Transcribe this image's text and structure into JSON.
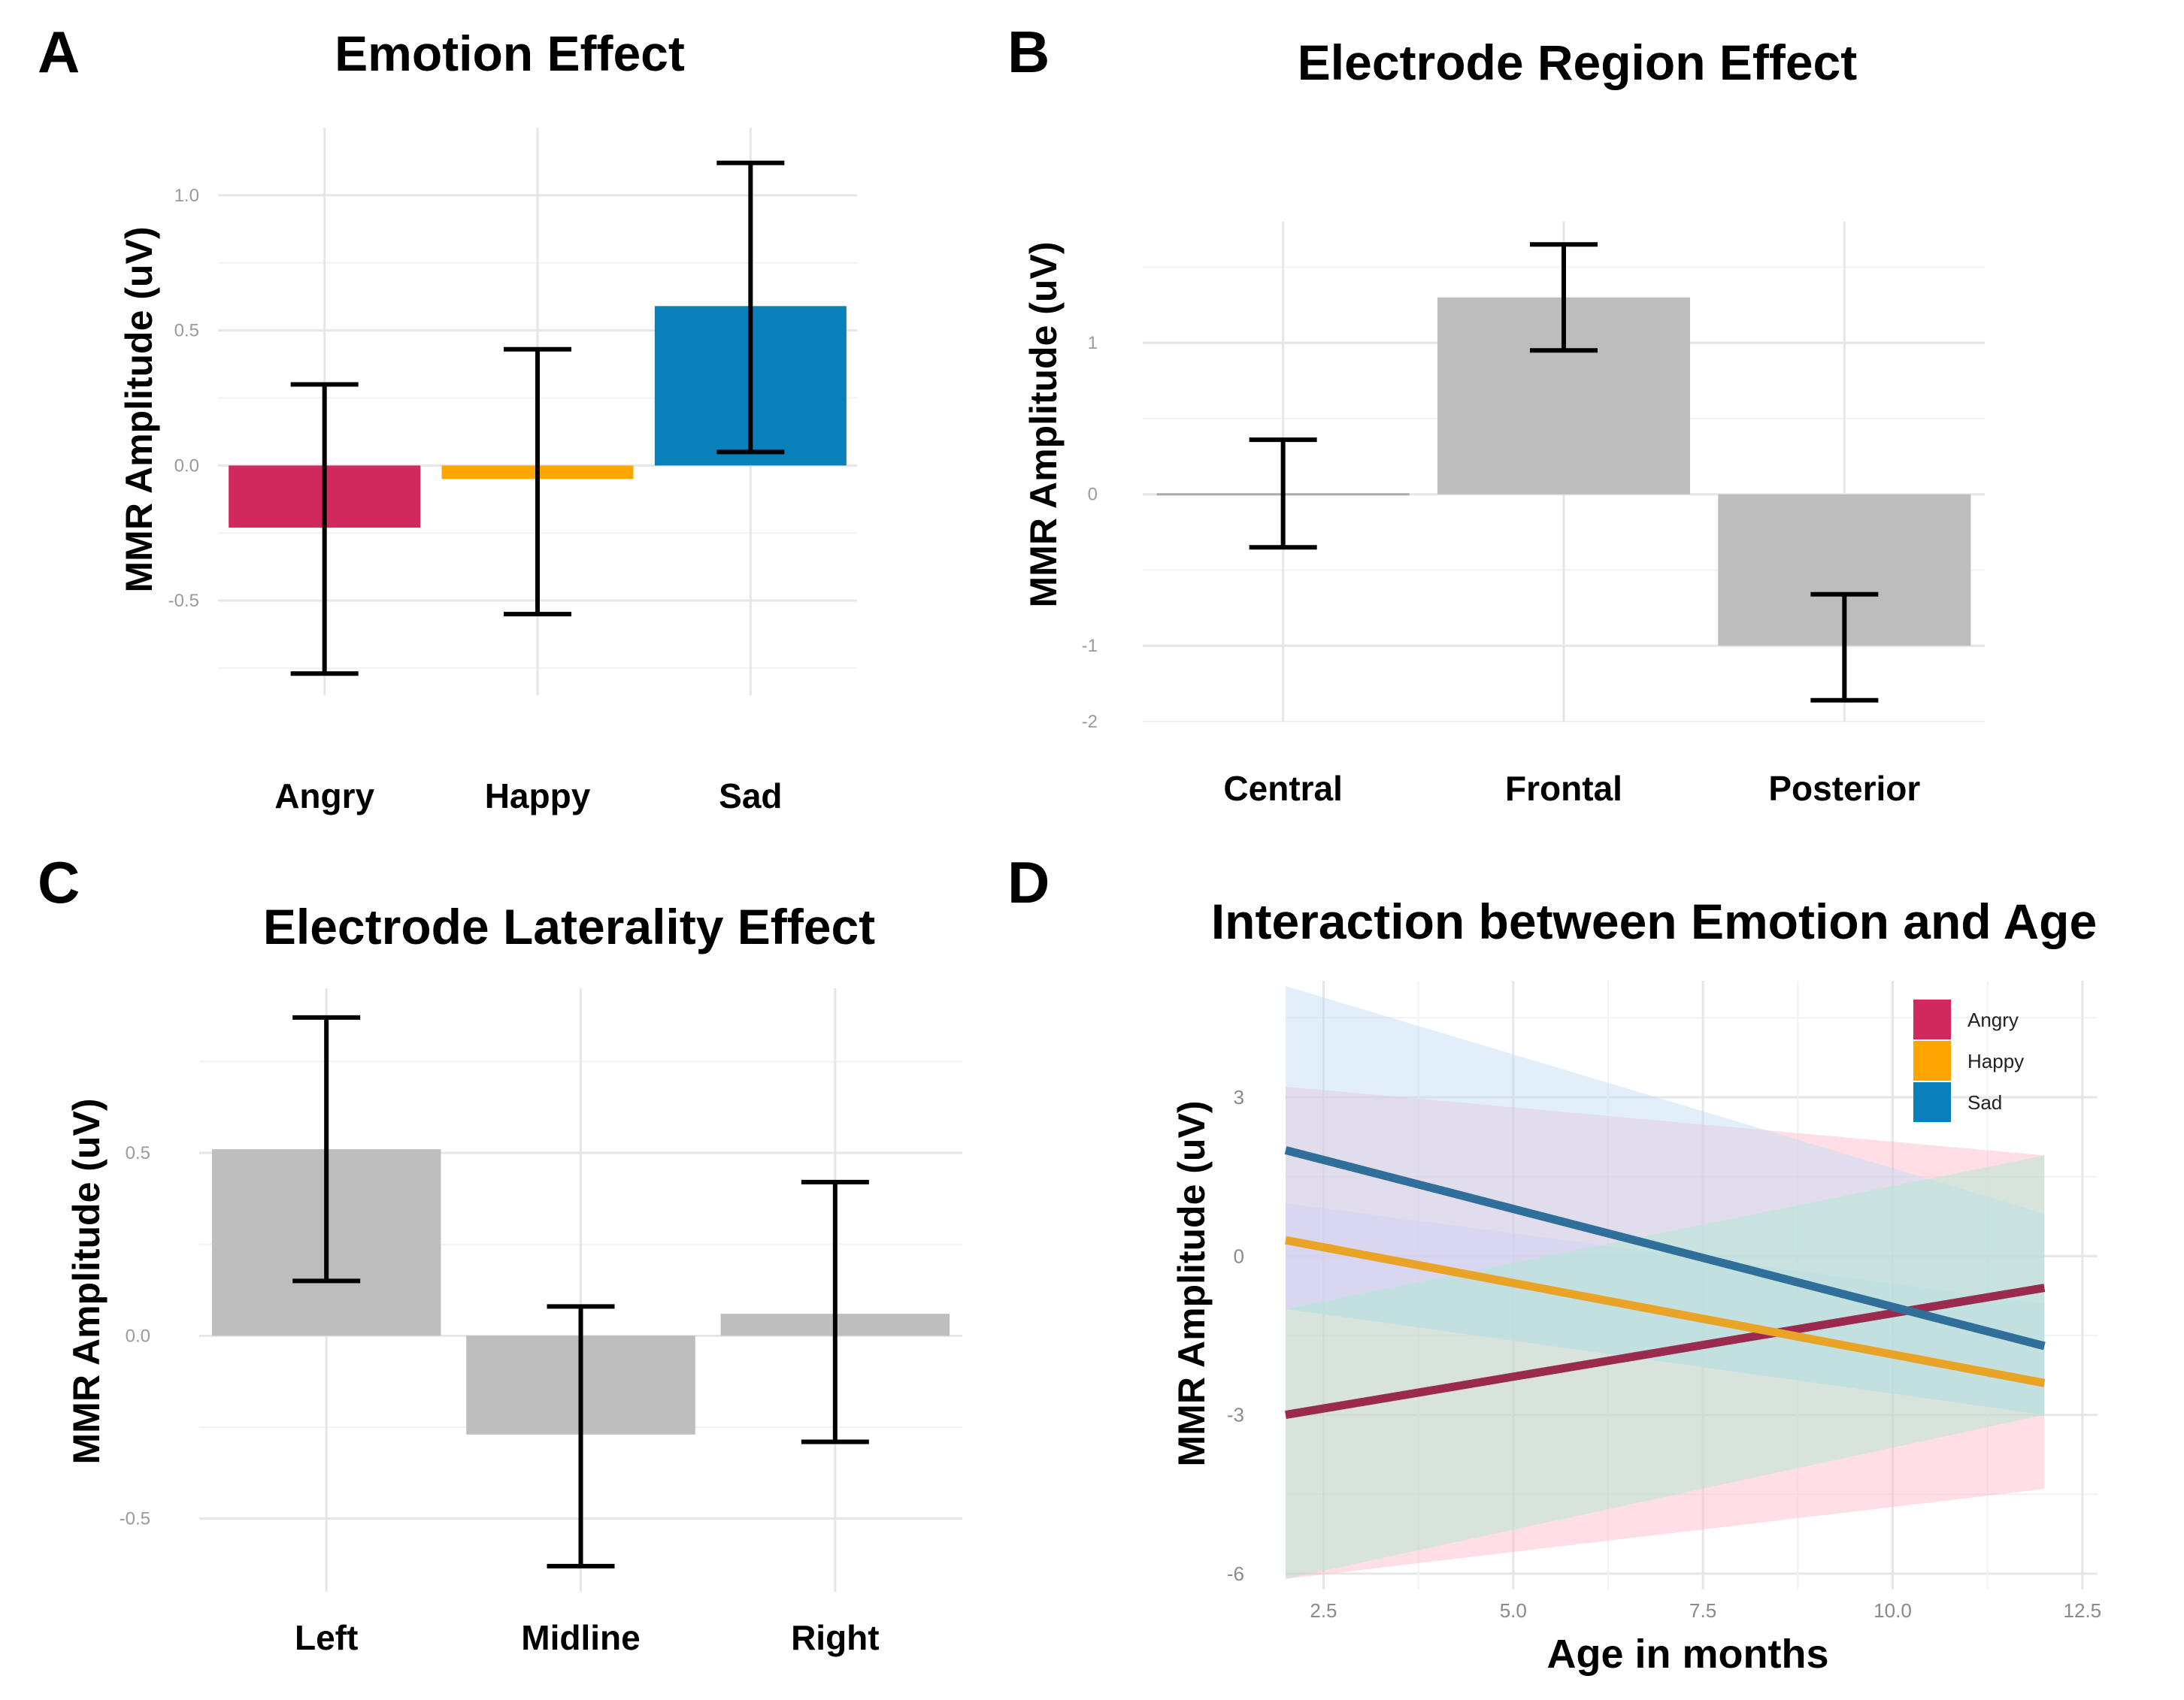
{
  "figure": {
    "panels": [
      {
        "letter": "A",
        "title": "Emotion Effect",
        "ylabel": "MMR Amplitude (uV)",
        "xlabel": ""
      },
      {
        "letter": "B",
        "title": "Electrode Region Effect",
        "ylabel": "MMR Amplitude (uV)",
        "xlabel": ""
      },
      {
        "letter": "C",
        "title": "Electrode Laterality Effect",
        "ylabel": "MMR Amplitude (uV)",
        "xlabel": ""
      },
      {
        "letter": "D",
        "title": "Interaction between Emotion and Age",
        "ylabel": "MMR Amplitude (uV)",
        "xlabel": "Age in months"
      }
    ]
  },
  "colors": {
    "Angry": "#D1285E",
    "Happy": "#FFA500",
    "Sad": "#0A80BA",
    "neutral_bar": "#BDBDBD",
    "Angry_line": "#9B2B4E",
    "Happy_line": "#E9A326",
    "Sad_line": "#2F6F9A"
  },
  "chart_data": [
    {
      "id": "A",
      "type": "bar",
      "title": "Emotion Effect",
      "xlabel": "",
      "ylabel": "MMR Amplitude (uV)",
      "categories": [
        "Angry",
        "Happy",
        "Sad"
      ],
      "values": [
        -0.23,
        -0.05,
        0.59
      ],
      "error_low": [
        -0.77,
        -0.55,
        0.05
      ],
      "error_high": [
        0.3,
        0.43,
        1.12
      ],
      "bar_colors": [
        "Angry",
        "Happy",
        "Sad"
      ],
      "yticks": [
        -0.5,
        0.0,
        0.5,
        1.0
      ],
      "ytick_labels": [
        "-0.5",
        "0.0",
        "0.5",
        "1.0"
      ],
      "ylim": [
        -0.85,
        1.25
      ],
      "grid": true
    },
    {
      "id": "B",
      "type": "bar",
      "title": "Electrode Region Effect",
      "xlabel": "",
      "ylabel": "MMR Amplitude (uV)",
      "categories": [
        "Central",
        "Frontal",
        "Posterior"
      ],
      "values": [
        0.0,
        1.3,
        -1.0
      ],
      "error_low": [
        -0.35,
        0.95,
        -1.36
      ],
      "error_high": [
        0.36,
        1.65,
        -0.66
      ],
      "bar_colors": [
        "neutral_bar",
        "neutral_bar",
        "neutral_bar"
      ],
      "yticks": [
        -2,
        -1,
        0,
        1
      ],
      "ytick_labels": [
        "-2",
        "-1",
        "0",
        "1"
      ],
      "ylim": [
        -1.5,
        1.8
      ],
      "grid": true
    },
    {
      "id": "C",
      "type": "bar",
      "title": "Electrode Laterality Effect",
      "xlabel": "",
      "ylabel": "MMR Amplitude (uV)",
      "categories": [
        "Left",
        "Midline",
        "Right"
      ],
      "values": [
        0.51,
        -0.27,
        0.06
      ],
      "error_low": [
        0.15,
        -0.63,
        -0.29
      ],
      "error_high": [
        0.87,
        0.08,
        0.42
      ],
      "bar_colors": [
        "neutral_bar",
        "neutral_bar",
        "neutral_bar"
      ],
      "yticks": [
        -0.5,
        0.0,
        0.5
      ],
      "ytick_labels": [
        "-0.5",
        "0.0",
        "0.5"
      ],
      "ylim": [
        -0.7,
        0.95
      ],
      "grid": true
    },
    {
      "id": "D",
      "type": "line",
      "title": "Interaction between Emotion and Age",
      "xlabel": "Age in months",
      "ylabel": "MMR Amplitude (uV)",
      "x": [
        2,
        12
      ],
      "series": [
        {
          "name": "Angry",
          "values": [
            -3.0,
            -0.6
          ],
          "ci_low": [
            -6.1,
            -4.4
          ],
          "ci_high": [
            3.2,
            1.9
          ],
          "ribbon_color": "#FFB6C8"
        },
        {
          "name": "Happy",
          "values": [
            0.3,
            -2.4
          ],
          "ci_low": [
            -1.0,
            -3.0
          ],
          "ci_high": [
            1.0,
            -0.9
          ],
          "ribbon_color": "#D9C8F0"
        },
        {
          "name": "Sad",
          "values": [
            2.0,
            -1.7
          ],
          "ci_low": [
            -1.0,
            -3.0
          ],
          "ci_high": [
            5.1,
            0.8
          ],
          "ribbon_color": "#BFDCF7"
        },
        {
          "name": "Green band",
          "values": null,
          "ci_low": [
            -6.1,
            -3.0
          ],
          "ci_high": [
            -1.0,
            1.9
          ],
          "ribbon_color": "#A8EACF"
        }
      ],
      "legend": [
        "Angry",
        "Happy",
        "Sad"
      ],
      "legend_position": "top-right",
      "xticks": [
        2.5,
        5.0,
        7.5,
        10.0,
        12.5
      ],
      "xtick_labels": [
        "2.5",
        "5.0",
        "7.5",
        "10.0",
        "12.5"
      ],
      "yticks": [
        -6,
        -3,
        0,
        3
      ],
      "ytick_labels": [
        "-6",
        "-3",
        "0",
        "3"
      ],
      "xlim": [
        2,
        12.7
      ],
      "ylim": [
        -6.3,
        5.2
      ],
      "grid": true
    }
  ]
}
